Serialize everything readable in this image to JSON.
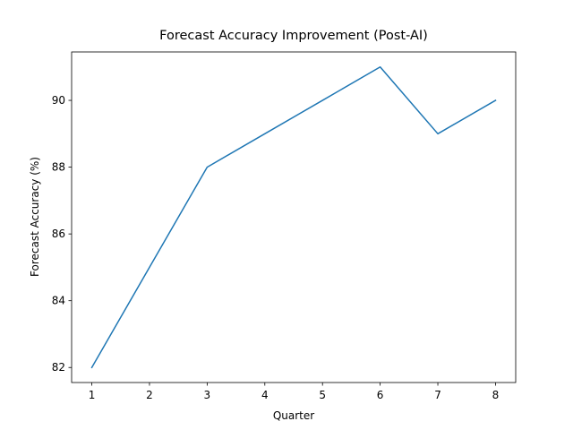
{
  "chart_data": {
    "type": "line",
    "title": "Forecast Accuracy Improvement (Post-AI)",
    "xlabel": "Quarter",
    "ylabel": "Forecast Accuracy (%)",
    "x": [
      1,
      2,
      3,
      4,
      5,
      6,
      7,
      8
    ],
    "series": [
      {
        "color": "#1f77b4",
        "values": [
          82,
          85,
          88,
          89,
          90,
          91,
          89,
          90
        ]
      }
    ],
    "xlim": [
      0.65,
      8.35
    ],
    "xticks": [
      1,
      2,
      3,
      4,
      5,
      6,
      7,
      8
    ],
    "ylim": [
      81.55,
      91.45
    ],
    "yticks": [
      82,
      84,
      86,
      88,
      90
    ],
    "grid": false
  }
}
